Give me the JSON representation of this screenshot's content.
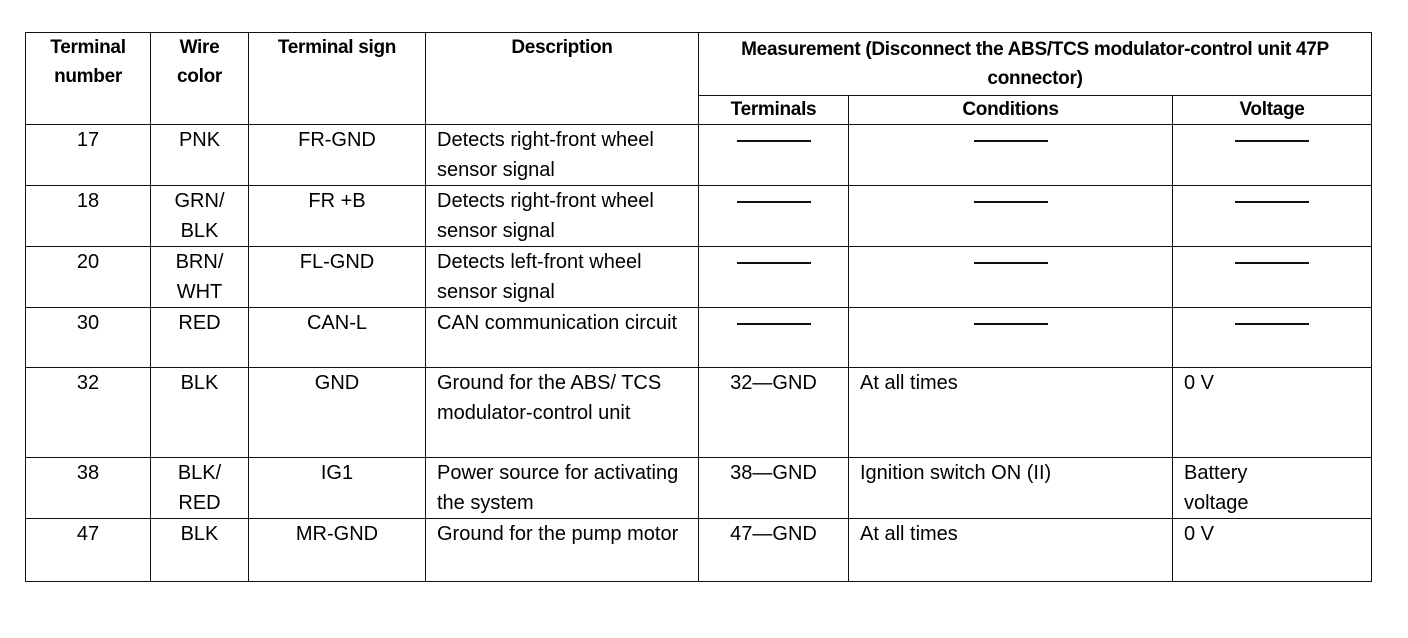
{
  "headers": {
    "terminal_number": "Terminal number",
    "wire_color": "Wire color",
    "terminal_sign": "Terminal sign",
    "description": "Description",
    "measurement": "Measurement (Disconnect the ABS/TCS modulator-control unit 47P connector)",
    "terminals": "Terminals",
    "conditions": "Conditions",
    "voltage": "Voltage"
  },
  "rows": [
    {
      "terminal": "17",
      "wire": "PNK",
      "sign": "FR-GND",
      "description": "Detects right-front wheel sensor signal",
      "terminals": "—",
      "conditions": "—",
      "voltage": "—"
    },
    {
      "terminal": "18",
      "wire": "GRN/ BLK",
      "sign": "FR +B",
      "description": "Detects right-front wheel sensor signal",
      "terminals": "—",
      "conditions": "—",
      "voltage": "—"
    },
    {
      "terminal": "20",
      "wire": "BRN/ WHT",
      "sign": "FL-GND",
      "description": "Detects left-front wheel sensor signal",
      "terminals": "—",
      "conditions": "—",
      "voltage": "—"
    },
    {
      "terminal": "30",
      "wire": "RED",
      "sign": "CAN-L",
      "description": "CAN communication circuit",
      "terminals": "—",
      "conditions": "—",
      "voltage": "—"
    },
    {
      "terminal": "32",
      "wire": "BLK",
      "sign": "GND",
      "description": "Ground for the ABS/ TCS modulator-control unit",
      "terminals": "32—GND",
      "conditions": "At all times",
      "voltage": "0 V"
    },
    {
      "terminal": "38",
      "wire": "BLK/ RED",
      "sign": "IG1",
      "description": "Power source for activating the system",
      "terminals": "38—GND",
      "conditions": "Ignition switch ON (II)",
      "voltage": "Battery voltage"
    },
    {
      "terminal": "47",
      "wire": "BLK",
      "sign": "MR-GND",
      "description": "Ground for the pump motor",
      "terminals": "47—GND",
      "conditions": "At all times",
      "voltage": "0 V"
    }
  ]
}
